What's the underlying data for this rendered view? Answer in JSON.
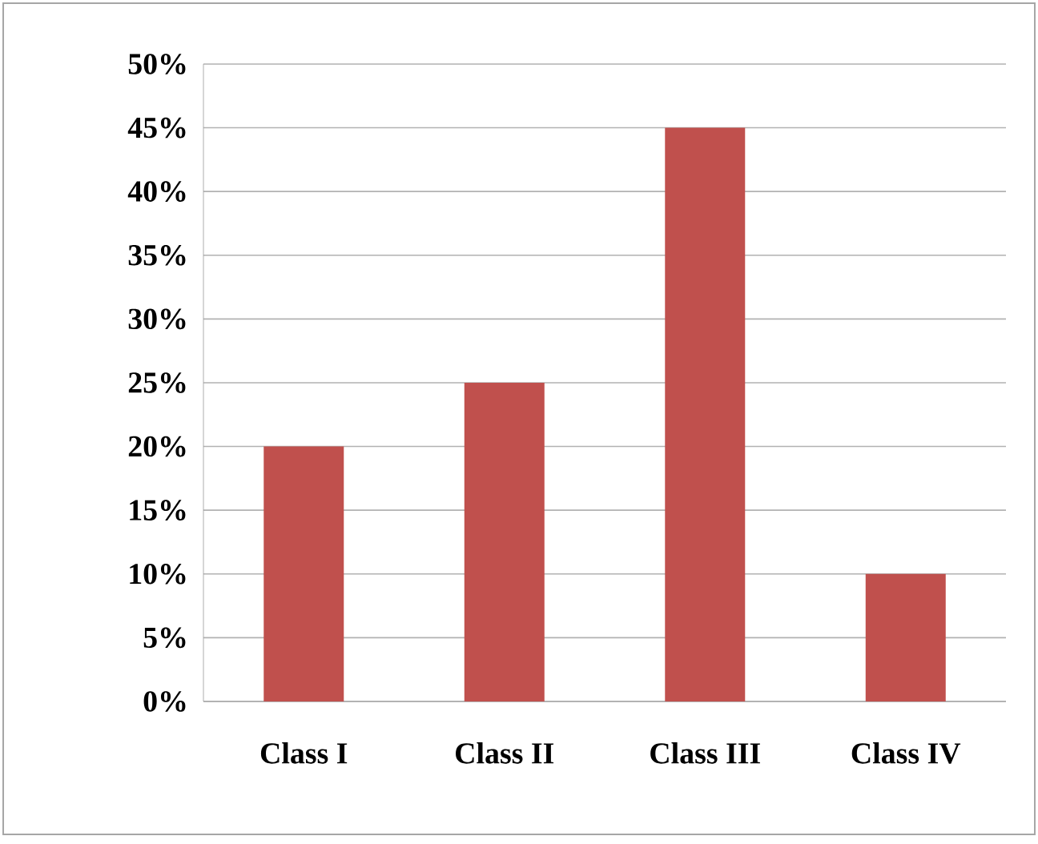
{
  "chart_data": {
    "type": "bar",
    "categories": [
      "Class I",
      "Class II",
      "Class III",
      "Class IV"
    ],
    "values": [
      20,
      25,
      45,
      10
    ],
    "color": "#c0504d",
    "ylim": [
      0,
      50
    ],
    "yticks": [
      {
        "value": 0,
        "label": "0%"
      },
      {
        "value": 5,
        "label": "5%"
      },
      {
        "value": 10,
        "label": "10%"
      },
      {
        "value": 15,
        "label": "15%"
      },
      {
        "value": 20,
        "label": "20%"
      },
      {
        "value": 25,
        "label": "25%"
      },
      {
        "value": 30,
        "label": "30%"
      },
      {
        "value": 35,
        "label": "35%"
      },
      {
        "value": 40,
        "label": "40%"
      },
      {
        "value": 45,
        "label": "45%"
      },
      {
        "value": 50,
        "label": "50%"
      }
    ],
    "grid": "y"
  }
}
